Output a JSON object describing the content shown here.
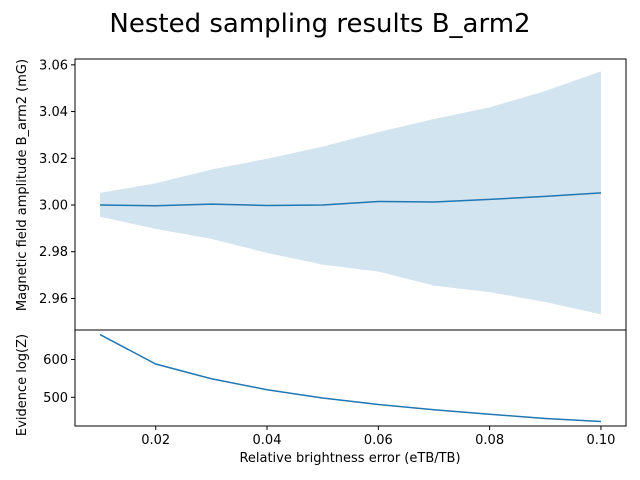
{
  "chart_data": [
    {
      "type": "line",
      "title": "Nested sampling results B_arm2",
      "ylabel": "Magnetic field amplitude B_arm2 (mG)",
      "x": [
        0.01,
        0.02,
        0.03,
        0.04,
        0.05,
        0.06,
        0.07,
        0.08,
        0.09,
        0.1
      ],
      "series": [
        {
          "values": [
            3.0,
            2.9997,
            3.0004,
            2.9998,
            3.0,
            3.0015,
            3.0013,
            3.0024,
            3.0037,
            3.0052
          ],
          "band_lower": [
            2.995,
            2.9898,
            2.9855,
            2.9795,
            2.9745,
            2.9715,
            2.9655,
            2.9627,
            2.9585,
            2.9532
          ],
          "band_upper": [
            3.0052,
            3.0093,
            3.0152,
            3.0198,
            3.025,
            3.0312,
            3.0368,
            3.0418,
            3.0488,
            3.0572
          ],
          "color": "#1f77b4",
          "band_color": "#1f77b4"
        }
      ],
      "xlim": [
        0.0055,
        0.1045
      ],
      "ylim": [
        2.9465,
        3.0625
      ],
      "yticks": [
        "2.96",
        "2.98",
        "3.00",
        "3.02",
        "3.04",
        "3.06"
      ],
      "grid": false
    },
    {
      "type": "line",
      "xlabel": "Relative brightness error (eTB/TB)",
      "ylabel": "Evidence log(Z)",
      "x": [
        0.01,
        0.02,
        0.03,
        0.04,
        0.05,
        0.06,
        0.07,
        0.08,
        0.09,
        0.1
      ],
      "series": [
        {
          "values": [
            666,
            588,
            549,
            520,
            498,
            481,
            467,
            455,
            444,
            436
          ],
          "color": "#1f77b4"
        }
      ],
      "xlim": [
        0.0055,
        0.1045
      ],
      "ylim": [
        424,
        678
      ],
      "xticks": [
        "0.02",
        "0.04",
        "0.06",
        "0.08",
        "0.10"
      ],
      "yticks": [
        "500",
        "600"
      ],
      "grid": false
    }
  ]
}
